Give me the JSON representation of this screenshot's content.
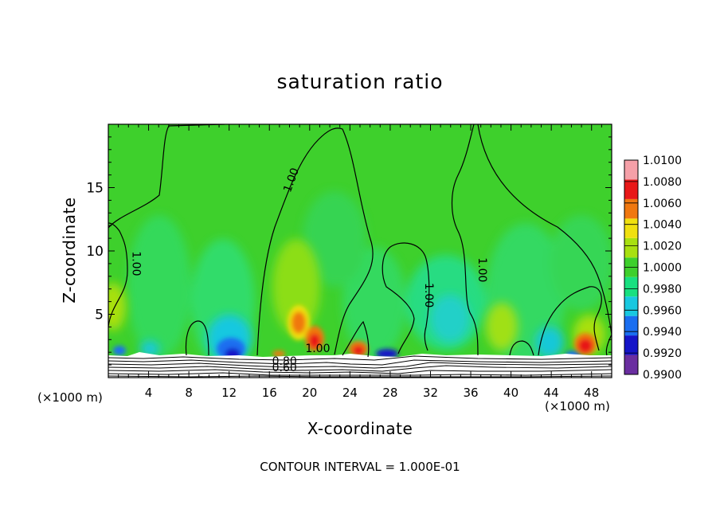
{
  "chart_data": {
    "type": "heatmap",
    "title": "saturation ratio",
    "xlabel": "X-coordinate",
    "ylabel": "Z-coordinate",
    "x_unit": "(×1000 m)",
    "x_unit_right": "(×1000 m)",
    "xlim": [
      0,
      50
    ],
    "ylim": [
      0,
      20
    ],
    "x_ticks": [
      4,
      8,
      12,
      16,
      20,
      24,
      28,
      32,
      36,
      40,
      44,
      48
    ],
    "y_ticks": [
      5,
      10,
      15
    ],
    "colorbar": {
      "levels": [
        0.99,
        0.992,
        0.994,
        0.996,
        0.998,
        1.0,
        1.002,
        1.004,
        1.006,
        1.008,
        1.01
      ],
      "labels": [
        "0.9900",
        "0.9920",
        "0.9940",
        "0.9960",
        "0.9980",
        "1.0000",
        "1.0020",
        "1.0040",
        "1.0060",
        "1.0080",
        "1.0100"
      ],
      "colors": [
        "#6a2ea0",
        "#1515c8",
        "#1a6ef0",
        "#18c8e0",
        "#18e080",
        "#3ed02c",
        "#a8e010",
        "#f0e010",
        "#f07810",
        "#e81818",
        "#f5a0a8"
      ]
    },
    "contour_labels": [
      {
        "text": "1.00",
        "x": 2.4,
        "z": 9.0
      },
      {
        "text": "1.00",
        "x": 18.5,
        "z": 15.5
      },
      {
        "text": "1.00",
        "x": 31.5,
        "z": 6.5
      },
      {
        "text": "1.00",
        "x": 36.8,
        "z": 8.5
      },
      {
        "text": "1.00",
        "x": 20.8,
        "z": 2.0
      },
      {
        "text": "0.80",
        "x": 17.5,
        "z": 1.0
      },
      {
        "text": "0.60",
        "x": 17.5,
        "z": 0.5
      }
    ],
    "contour_interval": "CONTOUR INTERVAL = 1.000E-01"
  }
}
